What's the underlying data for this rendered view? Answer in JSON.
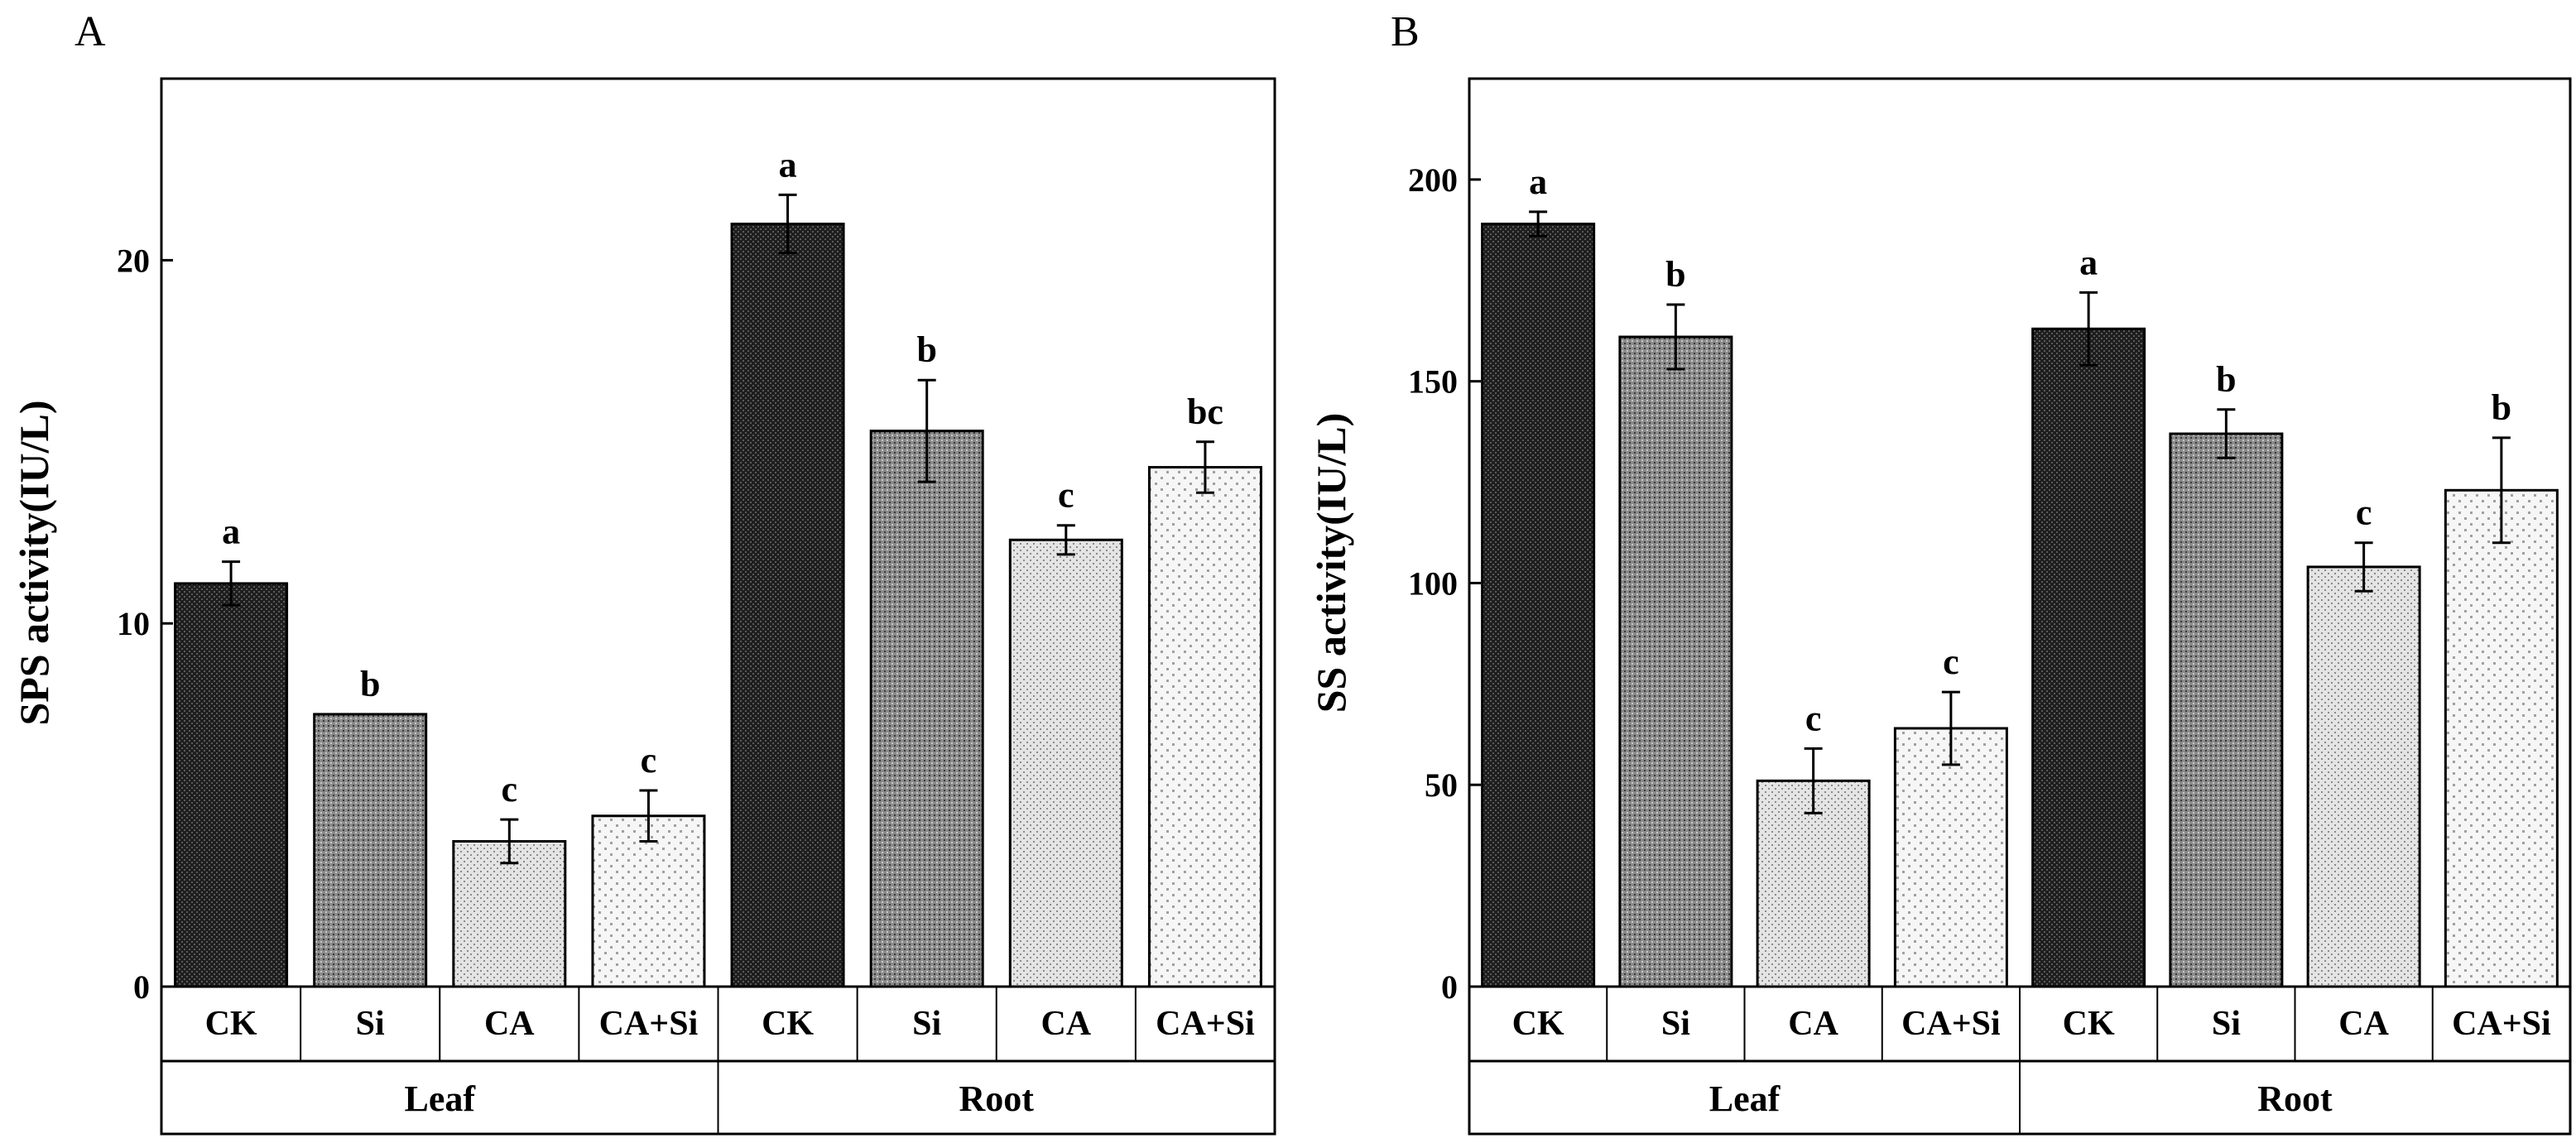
{
  "chart_data": [
    {
      "type": "bar",
      "panel": "A",
      "ylabel": "SPS activity(IU/L)",
      "ylim": [
        0,
        25
      ],
      "yticks": [
        0,
        10,
        20
      ],
      "groups": [
        "Leaf",
        "Root"
      ],
      "categories": [
        "CK",
        "Si",
        "CA",
        "CA+Si",
        "CK",
        "Si",
        "CA",
        "CA+Si"
      ],
      "values": [
        11.1,
        7.5,
        4.0,
        4.7,
        21.0,
        15.3,
        12.3,
        14.3
      ],
      "errors": [
        0.6,
        0.0,
        0.6,
        0.7,
        0.8,
        1.4,
        0.4,
        0.7
      ],
      "significance": [
        "a",
        "b",
        "c",
        "c",
        "a",
        "b",
        "c",
        "bc"
      ]
    },
    {
      "type": "bar",
      "panel": "B",
      "ylabel": "SS activity(IU/L)",
      "ylim": [
        0,
        225
      ],
      "yticks": [
        0,
        50,
        100,
        150,
        200
      ],
      "groups": [
        "Leaf",
        "Root"
      ],
      "categories": [
        "CK",
        "Si",
        "CA",
        "CA+Si",
        "CK",
        "Si",
        "CA",
        "CA+Si"
      ],
      "values": [
        189,
        161,
        51,
        64,
        163,
        137,
        104,
        123
      ],
      "errors": [
        3,
        8,
        8,
        9,
        9,
        6,
        6,
        13
      ],
      "significance": [
        "a",
        "b",
        "c",
        "c",
        "a",
        "b",
        "c",
        "b"
      ]
    }
  ]
}
